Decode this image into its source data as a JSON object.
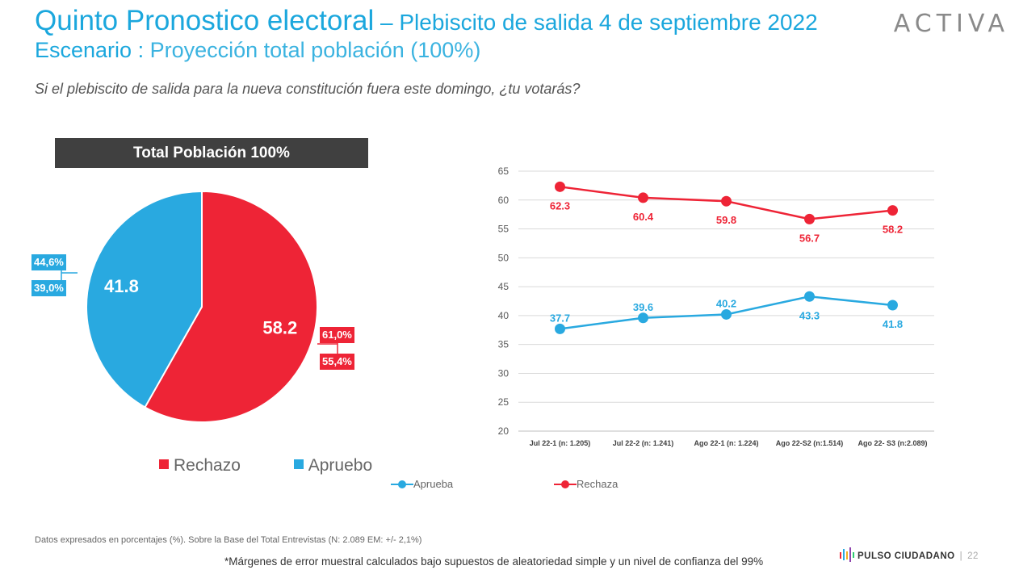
{
  "header": {
    "title_main": "Quinto Pronostico electoral",
    "title_sep": " – ",
    "title_sub": "Plebiscito de salida 4 de septiembre 2022",
    "scenario_label": "Escenario : ",
    "scenario_value": "Proyección total población (100%)",
    "logo": "ACTIVA"
  },
  "question": "Si el plebiscito de salida para la nueva constitución fuera este domingo, ¿tu votarás?",
  "colors": {
    "rechazo": "#ee2436",
    "apruebo": "#29a9e0",
    "header_bg": "#404040"
  },
  "chart_data": [
    {
      "type": "pie",
      "title": "Total Población 100%",
      "slices": [
        {
          "label": "Rechazo",
          "value": 58.2,
          "display": "58.2",
          "range_high": "61,0%",
          "range_low": "55,4%"
        },
        {
          "label": "Apruebo",
          "value": 41.8,
          "display": "41.8",
          "range_high": "44,6%",
          "range_low": "39,0%"
        }
      ],
      "legend": [
        "Rechazo",
        "Apruebo"
      ],
      "legend_position": "bottom"
    },
    {
      "type": "line",
      "categories": [
        "Jul 22-1 (n: 1.205)",
        "Jul 22-2 (n: 1.241)",
        "Ago 22-1 (n: 1.224)",
        "Ago 22-S2 (n:1.514)",
        "Ago 22- S3 (n:2.089)"
      ],
      "series": [
        {
          "name": "Aprueba",
          "values": [
            37.7,
            39.6,
            40.2,
            43.3,
            41.8
          ]
        },
        {
          "name": "Rechaza",
          "values": [
            62.3,
            60.4,
            59.8,
            56.7,
            58.2
          ]
        }
      ],
      "y_ticks": [
        20,
        25,
        30,
        35,
        40,
        45,
        50,
        55,
        60,
        65
      ],
      "ylim": [
        20,
        65
      ],
      "grid": true,
      "legend_position": "bottom"
    }
  ],
  "footer": {
    "note": "Datos expresados en porcentajes (%). Sobre la Base del Total Entrevistas (N:  2.089   EM: +/- 2,1%)",
    "margin_note": "*Márgenes de error muestral calculados bajo supuestos de aleatoriedad simple y un nivel de confianza del 99%",
    "brand": "PULSO CIUDADANO",
    "separator": "|",
    "page": "22"
  }
}
